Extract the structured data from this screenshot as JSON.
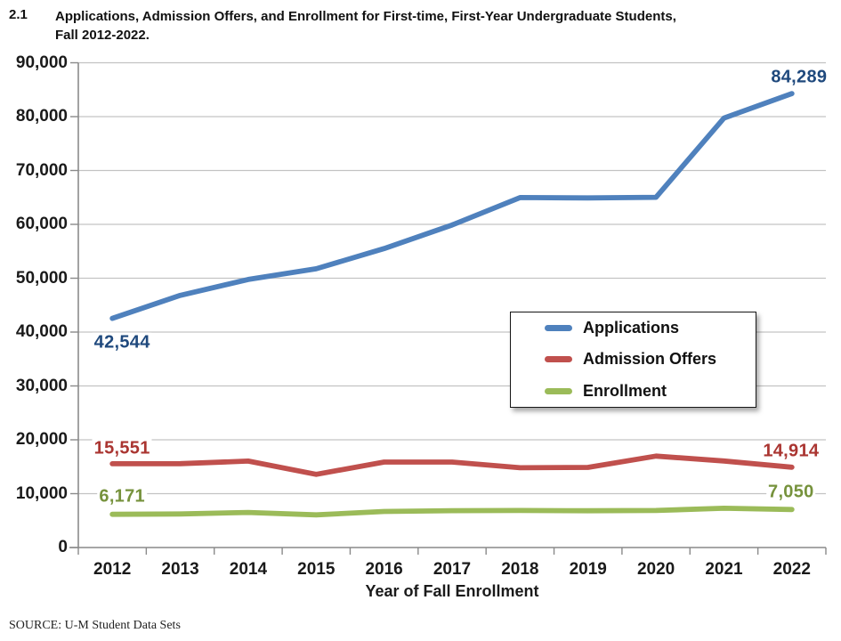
{
  "header": {
    "number": "2.1",
    "title_lines": [
      "Applications, Admission Offers, and Enrollment for First-time, First-Year Undergraduate Students,",
      "Fall 2012-2022."
    ]
  },
  "source": "SOURCE: U-M Student Data Sets",
  "chart_data": {
    "type": "line",
    "title": "Applications, Admission Offers, and Enrollment for First-time, First-Year Undergraduate Students, Fall 2012-2022",
    "xlabel": "Year of Fall Enrollment",
    "ylabel": "",
    "ylim": [
      0,
      90000
    ],
    "ytick_step": 10000,
    "ytick_labels": [
      "0",
      "10,000",
      "20,000",
      "30,000",
      "40,000",
      "50,000",
      "60,000",
      "70,000",
      "80,000",
      "90,000"
    ],
    "grid": true,
    "legend_position": "center-right",
    "categories": [
      "2012",
      "2013",
      "2014",
      "2015",
      "2016",
      "2017",
      "2018",
      "2019",
      "2020",
      "2021",
      "2022"
    ],
    "series": [
      {
        "name": "Applications",
        "color": "#4F81BD",
        "label_color": "#1F497D",
        "values": [
          42544,
          46813,
          49776,
          51753,
          55504,
          59886,
          64972,
          64917,
          65021,
          79743,
          84289
        ],
        "start_label": "42,544",
        "end_label": "84,289"
      },
      {
        "name": "Admission Offers",
        "color": "#C0504D",
        "label_color": "#AA3531",
        "values": [
          15551,
          15570,
          16047,
          13584,
          15871,
          15866,
          14806,
          14883,
          16974,
          16071,
          14914
        ],
        "start_label": "15,551",
        "end_label": "14,914"
      },
      {
        "name": "Enrollment",
        "color": "#9BBB59",
        "label_color": "#76923C",
        "values": [
          6171,
          6229,
          6505,
          6071,
          6689,
          6847,
          6879,
          6830,
          6879,
          7290,
          7050
        ],
        "start_label": "6,171",
        "end_label": "7,050"
      }
    ]
  }
}
